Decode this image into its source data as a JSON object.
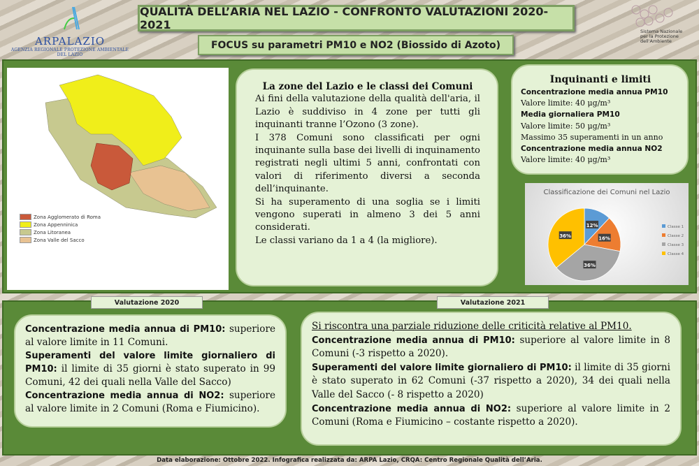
{
  "header": {
    "logo_name": "ARPALAZIO",
    "logo_sub": "AGENZIA REGIONALE PROTEZIONE AMBIENTALE DEL LAZIO",
    "title": "QUALITÀ DELL’ARIA NEL LAZIO - CONFRONTO VALUTAZIONI 2020-2021",
    "subtitle": "FOCUS su parametri PM10 e NO2 (Biossido di Azoto)",
    "snpa_text": [
      "Sistema Nazionale",
      "per la Protezione",
      "dell'Ambiente"
    ]
  },
  "map": {
    "legend": [
      {
        "label": "Zona Agglomerato di Roma",
        "color": "#c9593a"
      },
      {
        "label": "Zona Appenninica",
        "color": "#f0ee1a"
      },
      {
        "label": "Zona Litoranea",
        "color": "#c7c98f"
      },
      {
        "label": "Zona Valle del Sacco",
        "color": "#e8c292"
      }
    ]
  },
  "zones": {
    "title": "La zone del Lazio e le classi dei Comuni",
    "paragraphs": [
      "Ai fini della valutazione della qualità dell'aria, il Lazio è suddiviso in 4 zone per tutti gli inquinanti tranne l’Ozono (3 zone).",
      "I 378 Comuni sono classificati per ogni inquinante sulla base dei livelli di inquinamento registrati negli ultimi 5 anni, confrontati con valori di riferimento diversi a seconda dell’inquinante.",
      "Si ha superamento di una soglia se i limiti vengono superati in almeno 3 dei 5 anni considerati.",
      "Le classi variano da 1 a 4 (la migliore)."
    ]
  },
  "limits": {
    "title": "Inquinanti e limiti",
    "lines": [
      {
        "bold": true,
        "text": "Concentrazione media annua PM10"
      },
      {
        "bold": false,
        "text": "Valore limite: 40 μg/m³"
      },
      {
        "bold": true,
        "text": "Media giornaliera PM10"
      },
      {
        "bold": false,
        "text": "Valore limite: 50 μg/m³"
      },
      {
        "bold": false,
        "text": "Massimo 35 superamenti in un anno"
      },
      {
        "bold": true,
        "text": "Concentrazione media annua NO2"
      },
      {
        "bold": false,
        "text": "Valore limite: 40 μg/m³"
      }
    ]
  },
  "chart_data": {
    "type": "pie",
    "title": "Classificazione dei Comuni nel Lazio",
    "categories": [
      "Classe 1",
      "Classe 2",
      "Classe 3",
      "Classe 4"
    ],
    "values": [
      12,
      16,
      36,
      36
    ],
    "data_labels": [
      "12%",
      "16%",
      "36%",
      "36%"
    ],
    "colors": [
      "#5b9bd5",
      "#ed7d31",
      "#a5a5a5",
      "#ffc000"
    ],
    "legend": "right"
  },
  "v2020": {
    "tab": "Valutazione 2020",
    "items": [
      {
        "b": "Concentrazione media annua di PM10:",
        "t": " superiore al valore limite in 11 Comuni."
      },
      {
        "b": "Superamenti del valore limite giornaliero di PM10:",
        "t": " il limite di 35 giorni è stato superato in 99 Comuni, 42 dei quali nella Valle del Sacco)"
      },
      {
        "b": "Concentrazione media annua di NO2:",
        "t": " superiore al valore limite in 2 Comuni (Roma e Fiumicino)."
      }
    ]
  },
  "v2021": {
    "tab": "Valutazione 2021",
    "intro": "Si riscontra una parziale riduzione delle criticità relative al PM10.",
    "items": [
      {
        "b": "Concentrazione media annua di PM10:",
        "t": " superiore al valore limite in 8 Comuni (-3 rispetto a 2020)."
      },
      {
        "b": "Superamenti del valore limite giornaliero di PM10:",
        "t": " il limite di 35 giorni è stato superato in 62 Comuni (-37 rispetto a 2020), 34 dei quali nella Valle del Sacco (- 8 rispetto a 2020)"
      },
      {
        "b": "Concentrazione media annua di NO2:",
        "t": " superiore al valore limite in 2 Comuni (Roma e Fiumicino – costante rispetto a 2020)."
      }
    ]
  },
  "footer": "Data elaborazione: Ottobre 2022.  Infografica realizzata da: ARPA Lazio, CRQA: Centro Regionale Qualità dell’Aria."
}
